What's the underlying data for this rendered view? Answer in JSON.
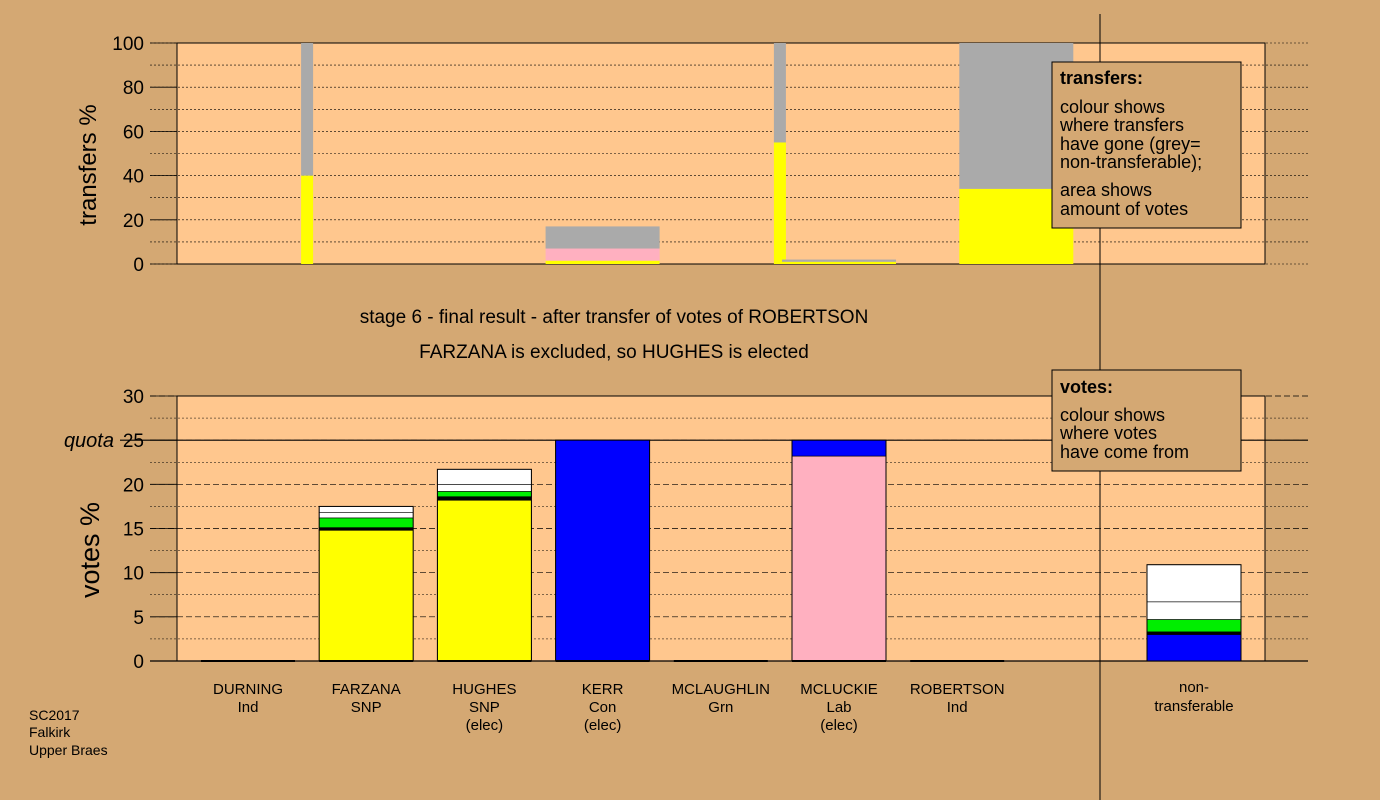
{
  "colors": {
    "page_bg": "#d4a873",
    "plot_bg": "#ffc78e",
    "snp": "#ffff00",
    "con": "#0000ff",
    "lab": "#ffb0c0",
    "grn": "#00ee00",
    "ind": "#ffffff",
    "grey": "#aaaaaa",
    "dark": "#000000"
  },
  "titles": {
    "line1": "stage 6 - final result - after transfer of votes of ROBERTSON",
    "line2": "FARZANA is excluded, so HUGHES is elected"
  },
  "footer": [
    "SC2017",
    "Falkirk",
    "Upper Braes"
  ],
  "legend_transfers": {
    "heading": "transfers:",
    "lines": [
      "colour shows",
      "where transfers",
      "have gone (grey=",
      "non-transferable);",
      "area shows",
      "amount of votes"
    ]
  },
  "legend_votes": {
    "heading": "votes:",
    "lines": [
      "colour shows",
      "where votes",
      "have come from"
    ]
  },
  "chart_data": [
    {
      "type": "bar",
      "name": "transfers",
      "ylabel": "transfers %",
      "ylim": [
        0,
        100
      ],
      "yticks": [
        0,
        20,
        40,
        60,
        80,
        100
      ],
      "bars": [
        {
          "slot": 0.5,
          "width": "narrow",
          "segments": [
            {
              "color": "snp",
              "value": 40
            },
            {
              "color": "grey",
              "value": 60
            }
          ]
        },
        {
          "slot": 3,
          "width": "full",
          "segments": [
            {
              "color": "snp",
              "value": 1.5
            },
            {
              "color": "lab",
              "value": 5.5
            },
            {
              "color": "grey",
              "value": 10
            }
          ]
        },
        {
          "slot": 4.5,
          "width": "narrow",
          "segments": [
            {
              "color": "snp",
              "value": 55
            },
            {
              "color": "grey",
              "value": 45
            }
          ]
        },
        {
          "slot": 5,
          "width": "full",
          "segments": [
            {
              "color": "snp",
              "value": 1
            },
            {
              "color": "grey",
              "value": 1
            }
          ]
        },
        {
          "slot": 6.5,
          "width": "full",
          "segments": [
            {
              "color": "snp",
              "value": 34
            },
            {
              "color": "grey",
              "value": 66
            }
          ]
        }
      ]
    },
    {
      "type": "bar",
      "name": "votes",
      "ylabel": "votes %",
      "ylim": [
        0,
        30
      ],
      "yticks": [
        0,
        5,
        10,
        15,
        20,
        25,
        30
      ],
      "quota": 25,
      "quota_label": "quota",
      "candidates": [
        {
          "name": "DURNING",
          "party": "Ind",
          "status": "",
          "segments": []
        },
        {
          "name": "FARZANA",
          "party": "SNP",
          "status": "",
          "segments": [
            {
              "color": "snp",
              "value": 14.8
            },
            {
              "color": "dark",
              "value": 0.3
            },
            {
              "color": "grn",
              "value": 1.1
            },
            {
              "color": "ind",
              "value": 0.6
            },
            {
              "color": "ind",
              "value": 0.7
            }
          ]
        },
        {
          "name": "HUGHES",
          "party": "SNP",
          "status": "(elec)",
          "segments": [
            {
              "color": "snp",
              "value": 18.2
            },
            {
              "color": "dark",
              "value": 0.4
            },
            {
              "color": "grn",
              "value": 0.6
            },
            {
              "color": "ind",
              "value": 0.8
            },
            {
              "color": "ind",
              "value": 1.7
            }
          ]
        },
        {
          "name": "KERR",
          "party": "Con",
          "status": "(elec)",
          "segments": [
            {
              "color": "con",
              "value": 25
            }
          ]
        },
        {
          "name": "MCLAUGHLIN",
          "party": "Grn",
          "status": "",
          "segments": []
        },
        {
          "name": "MCLUCKIE",
          "party": "Lab",
          "status": "(elec)",
          "segments": [
            {
              "color": "lab",
              "value": 23.2
            },
            {
              "color": "con",
              "value": 1.8
            }
          ]
        },
        {
          "name": "ROBERTSON",
          "party": "Ind",
          "status": "",
          "segments": []
        }
      ],
      "nontransferable": {
        "label_line1": "non-",
        "label_line2": "transferable",
        "segments": [
          {
            "color": "con",
            "value": 3.0
          },
          {
            "color": "dark",
            "value": 0.3
          },
          {
            "color": "grn",
            "value": 1.4
          },
          {
            "color": "ind",
            "value": 2.0
          },
          {
            "color": "ind",
            "value": 4.2
          }
        ]
      }
    }
  ]
}
